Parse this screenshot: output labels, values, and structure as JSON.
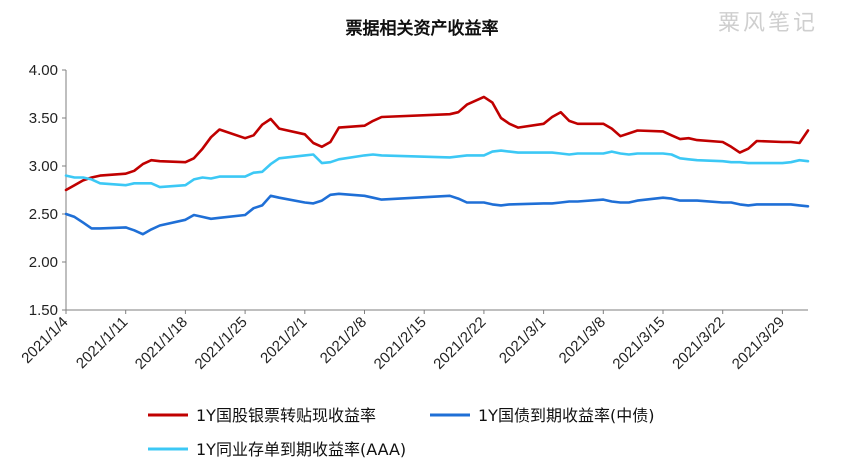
{
  "colors": {
    "red": "#C00000",
    "blue": "#1F6FD6",
    "lightblue": "#3CC8F5",
    "axis": "#7f7f7f"
  },
  "chart_data": {
    "type": "line",
    "title": "票据相关资产收益率",
    "watermark": "粟风笔记",
    "xlabel": "",
    "ylabel": "",
    "ylim": [
      1.5,
      4.0
    ],
    "y_ticks": [
      "4.00",
      "3.50",
      "3.00",
      "2.50",
      "2.00",
      "1.50"
    ],
    "x_range": [
      "2021/1/4",
      "2021/4/1"
    ],
    "x_tick_labels": [
      "2021/1/4",
      "2021/1/11",
      "2021/1/18",
      "2021/1/25",
      "2021/2/1",
      "2021/2/8",
      "2021/2/15",
      "2021/2/22",
      "2021/3/1",
      "2021/3/8",
      "2021/3/15",
      "2021/3/22",
      "2021/3/29"
    ],
    "grid": false,
    "legend_position": "bottom",
    "series": [
      {
        "name": "1Y国股银票转贴现收益率",
        "color_key": "red",
        "points": [
          [
            "2021/1/4",
            2.75
          ],
          [
            "2021/1/5",
            2.8
          ],
          [
            "2021/1/6",
            2.85
          ],
          [
            "2021/1/7",
            2.88
          ],
          [
            "2021/1/8",
            2.9
          ],
          [
            "2021/1/11",
            2.92
          ],
          [
            "2021/1/12",
            2.95
          ],
          [
            "2021/1/13",
            3.02
          ],
          [
            "2021/1/14",
            3.06
          ],
          [
            "2021/1/15",
            3.05
          ],
          [
            "2021/1/18",
            3.04
          ],
          [
            "2021/1/19",
            3.08
          ],
          [
            "2021/1/20",
            3.18
          ],
          [
            "2021/1/21",
            3.3
          ],
          [
            "2021/1/22",
            3.38
          ],
          [
            "2021/1/25",
            3.29
          ],
          [
            "2021/1/26",
            3.32
          ],
          [
            "2021/1/27",
            3.43
          ],
          [
            "2021/1/28",
            3.49
          ],
          [
            "2021/1/29",
            3.39
          ],
          [
            "2021/2/1",
            3.33
          ],
          [
            "2021/2/2",
            3.24
          ],
          [
            "2021/2/3",
            3.2
          ],
          [
            "2021/2/4",
            3.25
          ],
          [
            "2021/2/5",
            3.4
          ],
          [
            "2021/2/8",
            3.42
          ],
          [
            "2021/2/9",
            3.47
          ],
          [
            "2021/2/10",
            3.51
          ],
          [
            "2021/2/18",
            3.54
          ],
          [
            "2021/2/19",
            3.56
          ],
          [
            "2021/2/20",
            3.64
          ],
          [
            "2021/2/22",
            3.72
          ],
          [
            "2021/2/23",
            3.66
          ],
          [
            "2021/2/24",
            3.5
          ],
          [
            "2021/2/25",
            3.44
          ],
          [
            "2021/2/26",
            3.4
          ],
          [
            "2021/3/1",
            3.44
          ],
          [
            "2021/3/2",
            3.51
          ],
          [
            "2021/3/3",
            3.56
          ],
          [
            "2021/3/4",
            3.47
          ],
          [
            "2021/3/5",
            3.44
          ],
          [
            "2021/3/8",
            3.44
          ],
          [
            "2021/3/9",
            3.39
          ],
          [
            "2021/3/10",
            3.31
          ],
          [
            "2021/3/11",
            3.34
          ],
          [
            "2021/3/12",
            3.37
          ],
          [
            "2021/3/15",
            3.36
          ],
          [
            "2021/3/16",
            3.32
          ],
          [
            "2021/3/17",
            3.28
          ],
          [
            "2021/3/18",
            3.29
          ],
          [
            "2021/3/19",
            3.27
          ],
          [
            "2021/3/22",
            3.25
          ],
          [
            "2021/3/23",
            3.2
          ],
          [
            "2021/3/24",
            3.14
          ],
          [
            "2021/3/25",
            3.18
          ],
          [
            "2021/3/26",
            3.26
          ],
          [
            "2021/3/29",
            3.25
          ],
          [
            "2021/3/30",
            3.25
          ],
          [
            "2021/3/31",
            3.24
          ],
          [
            "2021/4/1",
            3.37
          ]
        ]
      },
      {
        "name": "1Y国债到期收益率(中债)",
        "color_key": "blue",
        "points": [
          [
            "2021/1/4",
            2.5
          ],
          [
            "2021/1/5",
            2.47
          ],
          [
            "2021/1/6",
            2.41
          ],
          [
            "2021/1/7",
            2.35
          ],
          [
            "2021/1/8",
            2.35
          ],
          [
            "2021/1/11",
            2.36
          ],
          [
            "2021/1/12",
            2.33
          ],
          [
            "2021/1/13",
            2.29
          ],
          [
            "2021/1/14",
            2.34
          ],
          [
            "2021/1/15",
            2.38
          ],
          [
            "2021/1/18",
            2.44
          ],
          [
            "2021/1/19",
            2.49
          ],
          [
            "2021/1/20",
            2.47
          ],
          [
            "2021/1/21",
            2.45
          ],
          [
            "2021/1/22",
            2.46
          ],
          [
            "2021/1/25",
            2.49
          ],
          [
            "2021/1/26",
            2.56
          ],
          [
            "2021/1/27",
            2.59
          ],
          [
            "2021/1/28",
            2.69
          ],
          [
            "2021/1/29",
            2.67
          ],
          [
            "2021/2/1",
            2.62
          ],
          [
            "2021/2/2",
            2.61
          ],
          [
            "2021/2/3",
            2.64
          ],
          [
            "2021/2/4",
            2.7
          ],
          [
            "2021/2/5",
            2.71
          ],
          [
            "2021/2/8",
            2.69
          ],
          [
            "2021/2/9",
            2.67
          ],
          [
            "2021/2/10",
            2.65
          ],
          [
            "2021/2/18",
            2.69
          ],
          [
            "2021/2/19",
            2.66
          ],
          [
            "2021/2/20",
            2.62
          ],
          [
            "2021/2/22",
            2.62
          ],
          [
            "2021/2/23",
            2.6
          ],
          [
            "2021/2/24",
            2.59
          ],
          [
            "2021/2/25",
            2.6
          ],
          [
            "2021/3/1",
            2.61
          ],
          [
            "2021/3/2",
            2.61
          ],
          [
            "2021/3/3",
            2.62
          ],
          [
            "2021/3/4",
            2.63
          ],
          [
            "2021/3/5",
            2.63
          ],
          [
            "2021/3/8",
            2.65
          ],
          [
            "2021/3/9",
            2.63
          ],
          [
            "2021/3/10",
            2.62
          ],
          [
            "2021/3/11",
            2.62
          ],
          [
            "2021/3/12",
            2.64
          ],
          [
            "2021/3/15",
            2.67
          ],
          [
            "2021/3/16",
            2.66
          ],
          [
            "2021/3/17",
            2.64
          ],
          [
            "2021/3/18",
            2.64
          ],
          [
            "2021/3/19",
            2.64
          ],
          [
            "2021/3/22",
            2.62
          ],
          [
            "2021/3/23",
            2.62
          ],
          [
            "2021/3/24",
            2.6
          ],
          [
            "2021/3/25",
            2.59
          ],
          [
            "2021/3/26",
            2.6
          ],
          [
            "2021/3/29",
            2.6
          ],
          [
            "2021/3/30",
            2.6
          ],
          [
            "2021/3/31",
            2.59
          ],
          [
            "2021/4/1",
            2.58
          ]
        ]
      },
      {
        "name": "1Y同业存单到期收益率(AAA)",
        "color_key": "lightblue",
        "points": [
          [
            "2021/1/4",
            2.9
          ],
          [
            "2021/1/5",
            2.88
          ],
          [
            "2021/1/6",
            2.88
          ],
          [
            "2021/1/7",
            2.86
          ],
          [
            "2021/1/8",
            2.82
          ],
          [
            "2021/1/11",
            2.8
          ],
          [
            "2021/1/12",
            2.82
          ],
          [
            "2021/1/13",
            2.82
          ],
          [
            "2021/1/14",
            2.82
          ],
          [
            "2021/1/15",
            2.78
          ],
          [
            "2021/1/18",
            2.8
          ],
          [
            "2021/1/19",
            2.86
          ],
          [
            "2021/1/20",
            2.88
          ],
          [
            "2021/1/21",
            2.87
          ],
          [
            "2021/1/22",
            2.89
          ],
          [
            "2021/1/25",
            2.89
          ],
          [
            "2021/1/26",
            2.93
          ],
          [
            "2021/1/27",
            2.94
          ],
          [
            "2021/1/28",
            3.02
          ],
          [
            "2021/1/29",
            3.08
          ],
          [
            "2021/2/1",
            3.11
          ],
          [
            "2021/2/2",
            3.12
          ],
          [
            "2021/2/3",
            3.03
          ],
          [
            "2021/2/4",
            3.04
          ],
          [
            "2021/2/5",
            3.07
          ],
          [
            "2021/2/8",
            3.11
          ],
          [
            "2021/2/9",
            3.12
          ],
          [
            "2021/2/10",
            3.11
          ],
          [
            "2021/2/18",
            3.09
          ],
          [
            "2021/2/19",
            3.1
          ],
          [
            "2021/2/20",
            3.11
          ],
          [
            "2021/2/22",
            3.11
          ],
          [
            "2021/2/23",
            3.15
          ],
          [
            "2021/2/24",
            3.16
          ],
          [
            "2021/2/25",
            3.15
          ],
          [
            "2021/2/26",
            3.14
          ],
          [
            "2021/3/1",
            3.14
          ],
          [
            "2021/3/2",
            3.14
          ],
          [
            "2021/3/3",
            3.13
          ],
          [
            "2021/3/4",
            3.12
          ],
          [
            "2021/3/5",
            3.13
          ],
          [
            "2021/3/8",
            3.13
          ],
          [
            "2021/3/9",
            3.15
          ],
          [
            "2021/3/10",
            3.13
          ],
          [
            "2021/3/11",
            3.12
          ],
          [
            "2021/3/12",
            3.13
          ],
          [
            "2021/3/15",
            3.13
          ],
          [
            "2021/3/16",
            3.12
          ],
          [
            "2021/3/17",
            3.08
          ],
          [
            "2021/3/18",
            3.07
          ],
          [
            "2021/3/19",
            3.06
          ],
          [
            "2021/3/22",
            3.05
          ],
          [
            "2021/3/23",
            3.04
          ],
          [
            "2021/3/24",
            3.04
          ],
          [
            "2021/3/25",
            3.03
          ],
          [
            "2021/3/26",
            3.03
          ],
          [
            "2021/3/29",
            3.03
          ],
          [
            "2021/3/30",
            3.04
          ],
          [
            "2021/3/31",
            3.06
          ],
          [
            "2021/4/1",
            3.05
          ]
        ]
      }
    ]
  }
}
